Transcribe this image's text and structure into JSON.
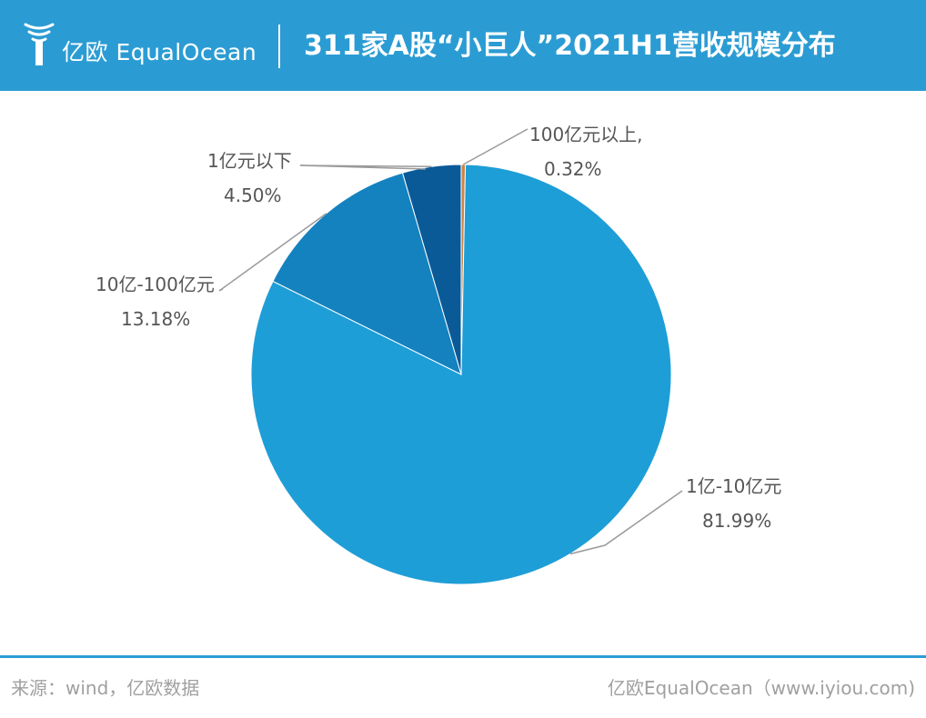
{
  "header": {
    "logo_text": "亿欧 EqualOcean",
    "title": "311家A股“小巨人”2021H1营收规模分布"
  },
  "chart_data": {
    "type": "pie",
    "title": "311家A股“小巨人”2021H1营收规模分布",
    "slices": [
      {
        "label": "100亿元以上,",
        "value": 0.32,
        "value_label": "0.32%",
        "color": "#c8864a"
      },
      {
        "label": "1亿-10亿元",
        "value": 81.99,
        "value_label": "81.99%",
        "color": "#1e9ed6"
      },
      {
        "label": "10亿-100亿元",
        "value": 13.18,
        "value_label": "13.18%",
        "color": "#1382bf"
      },
      {
        "label": "1亿元以下",
        "value": 4.5,
        "value_label": "4.50%",
        "color": "#0a5a98"
      }
    ],
    "start_angle_deg": 0,
    "direction": "clockwise",
    "legend": "none"
  },
  "footer": {
    "source": "来源：wind，亿欧数据",
    "brand": "亿欧EqualOcean（www.iyiou.com)"
  },
  "colors": {
    "header_bg": "#2b9cd3",
    "label_text": "#555555",
    "leader_line": "#9a9a9a",
    "footer_text": "#a0a0a0"
  }
}
